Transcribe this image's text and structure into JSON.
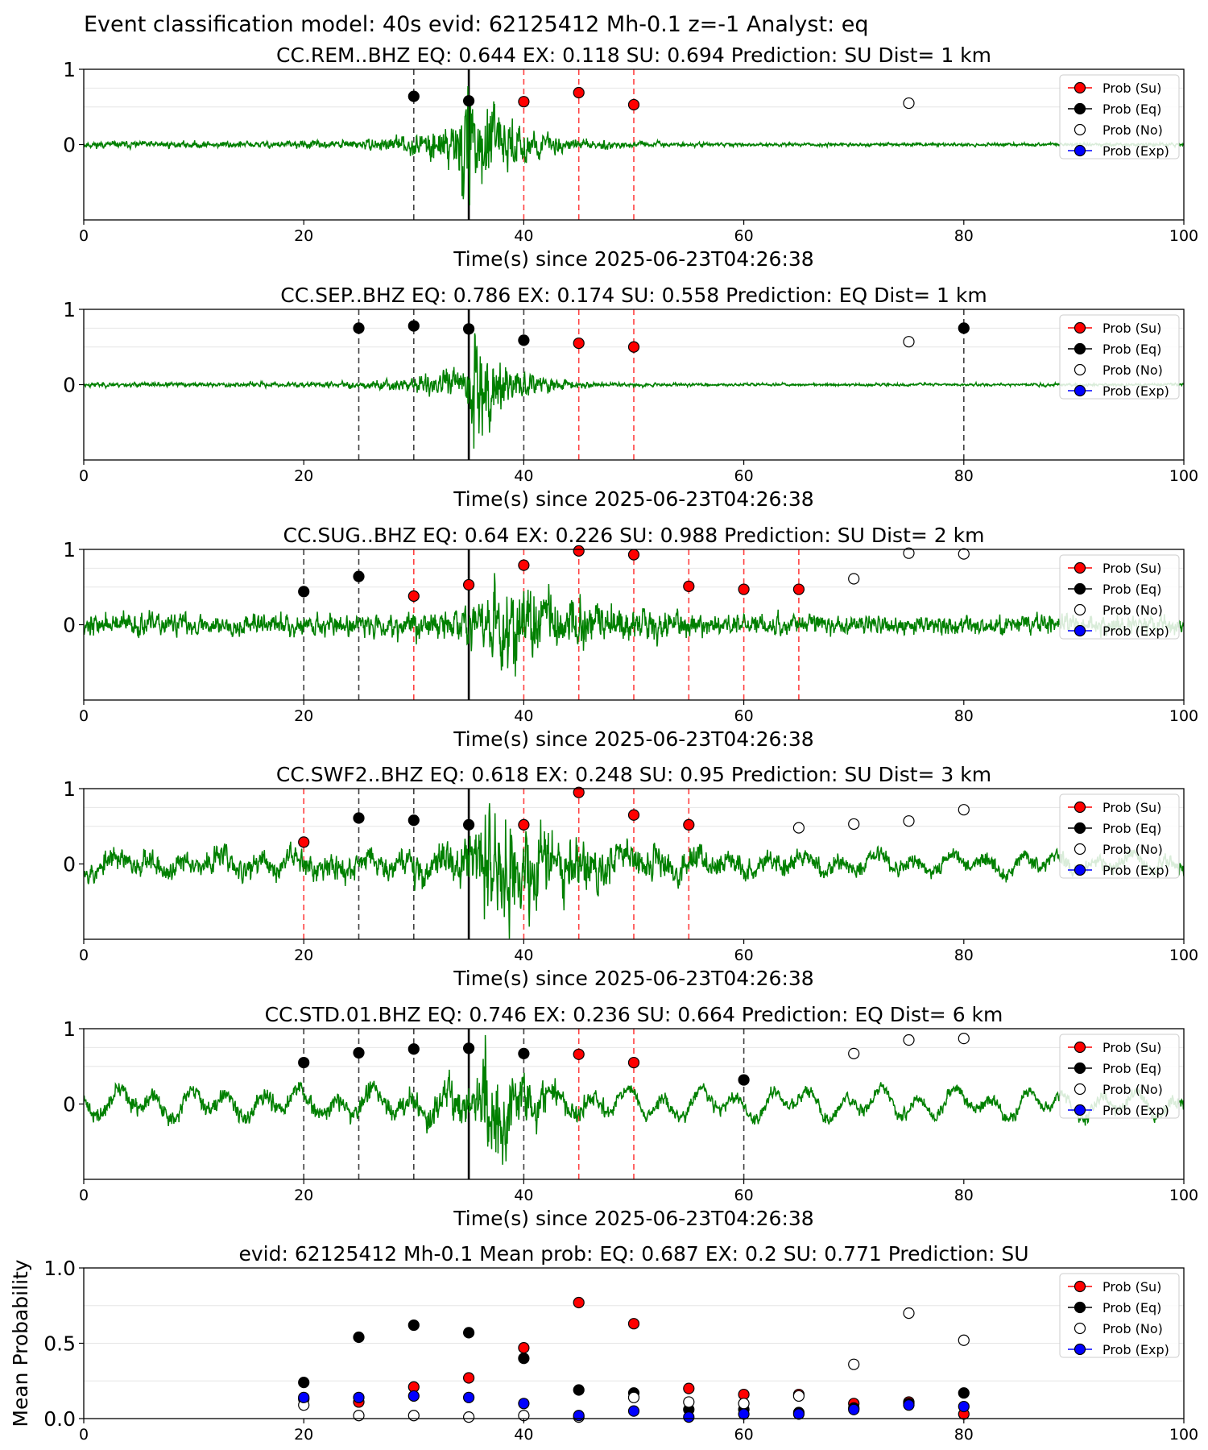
{
  "figure": {
    "suptitle": "Event classification model: 40s evid: 62125412 Mh-0.1 z=-1 Analyst: eq"
  },
  "legend_labels": [
    "Prob (Su)",
    "Prob (Eq)",
    "Prob (No)",
    "Prob (Exp)"
  ],
  "colors": {
    "su": "#ff0000",
    "eq": "#000000",
    "no": "#ffffff",
    "exp": "#0000ff",
    "waveform": "#008000",
    "su_line": "#ff4040",
    "eq_line": "#404040",
    "pick_line": "#000000"
  },
  "chart_data": [
    {
      "type": "scatter",
      "title": "CC.REM..BHZ   EQ: 0.644   EX: 0.118   SU: 0.694   Prediction: SU    Dist= 1 km",
      "xlabel": "Time(s) since 2025-06-23T04:26:38",
      "xlim": [
        0,
        100
      ],
      "xticks": [
        "0",
        "20",
        "40",
        "60",
        "80",
        "100"
      ],
      "ylim": [
        -1,
        1
      ],
      "yticks": [
        "0",
        "1"
      ],
      "legend_position": "upper right",
      "pick_time": 35,
      "waveform": {
        "pre_noise": 0.03,
        "event_start": 34,
        "event_amp": 1.15,
        "decay": 4.0,
        "post_noise": 0.015,
        "long_period": 0.0,
        "seed": 11
      },
      "series": [
        {
          "name": "Prob (Su)",
          "x": [
            40,
            45,
            50
          ],
          "y": [
            0.57,
            0.69,
            0.53
          ]
        },
        {
          "name": "Prob (Eq)",
          "x": [
            30,
            35
          ],
          "y": [
            0.64,
            0.58
          ]
        },
        {
          "name": "Prob (No)",
          "x": [
            75
          ],
          "y": [
            0.55
          ]
        },
        {
          "name": "Prob (Exp)",
          "x": [],
          "y": []
        }
      ]
    },
    {
      "type": "scatter",
      "title": "CC.SEP..BHZ   EQ: 0.786   EX: 0.174   SU: 0.558   Prediction: EQ    Dist= 1 km",
      "xlabel": "Time(s) since 2025-06-23T04:26:38",
      "xlim": [
        0,
        100
      ],
      "xticks": [
        "0",
        "20",
        "40",
        "60",
        "80",
        "100"
      ],
      "ylim": [
        -1,
        1
      ],
      "yticks": [
        "0",
        "1"
      ],
      "legend_position": "upper right",
      "pick_time": 35,
      "waveform": {
        "pre_noise": 0.02,
        "event_start": 35,
        "event_amp": 1.25,
        "decay": 3.0,
        "post_noise": 0.012,
        "long_period": 0.0,
        "seed": 23
      },
      "series": [
        {
          "name": "Prob (Su)",
          "x": [
            45,
            50
          ],
          "y": [
            0.55,
            0.5
          ]
        },
        {
          "name": "Prob (Eq)",
          "x": [
            25,
            30,
            35,
            40,
            80
          ],
          "y": [
            0.75,
            0.78,
            0.74,
            0.59,
            0.75
          ]
        },
        {
          "name": "Prob (No)",
          "x": [
            75
          ],
          "y": [
            0.57
          ]
        },
        {
          "name": "Prob (Exp)",
          "x": [],
          "y": []
        }
      ]
    },
    {
      "type": "scatter",
      "title": "CC.SUG..BHZ   EQ: 0.64   EX: 0.226   SU: 0.988   Prediction: SU    Dist= 2 km",
      "xlabel": "Time(s) since 2025-06-23T04:26:38",
      "xlim": [
        0,
        100
      ],
      "xticks": [
        "0",
        "20",
        "40",
        "60",
        "80",
        "100"
      ],
      "ylim": [
        -1,
        1
      ],
      "yticks": [
        "0",
        "1"
      ],
      "legend_position": "upper right",
      "pick_time": 35,
      "waveform": {
        "pre_noise": 0.1,
        "event_start": 37,
        "event_amp": 0.9,
        "decay": 7.0,
        "post_noise": 0.08,
        "long_period": 0.0,
        "seed": 37
      },
      "series": [
        {
          "name": "Prob (Su)",
          "x": [
            30,
            35,
            40,
            45,
            50,
            55,
            60,
            65
          ],
          "y": [
            0.38,
            0.53,
            0.79,
            0.98,
            0.93,
            0.51,
            0.47,
            0.47
          ]
        },
        {
          "name": "Prob (Eq)",
          "x": [
            20,
            25
          ],
          "y": [
            0.44,
            0.64
          ]
        },
        {
          "name": "Prob (No)",
          "x": [
            70,
            75,
            80
          ],
          "y": [
            0.61,
            0.95,
            0.94
          ]
        },
        {
          "name": "Prob (Exp)",
          "x": [],
          "y": []
        }
      ]
    },
    {
      "type": "scatter",
      "title": "CC.SWF2..BHZ   EQ: 0.618   EX: 0.248   SU: 0.95   Prediction: SU    Dist= 3 km",
      "xlabel": "Time(s) since 2025-06-23T04:26:38",
      "xlim": [
        0,
        100
      ],
      "xticks": [
        "0",
        "20",
        "40",
        "60",
        "80",
        "100"
      ],
      "ylim": [
        -1,
        1
      ],
      "yticks": [
        "0",
        "1"
      ],
      "legend_position": "upper right",
      "pick_time": 35,
      "waveform": {
        "pre_noise": 0.11,
        "event_start": 36,
        "event_amp": 1.0,
        "decay": 8.0,
        "post_noise": 0.07,
        "long_period": 0.14,
        "seed": 53
      },
      "series": [
        {
          "name": "Prob (Su)",
          "x": [
            20,
            40,
            45,
            50,
            55
          ],
          "y": [
            0.29,
            0.52,
            0.95,
            0.65,
            0.52
          ]
        },
        {
          "name": "Prob (Eq)",
          "x": [
            25,
            30,
            35
          ],
          "y": [
            0.61,
            0.58,
            0.52
          ]
        },
        {
          "name": "Prob (No)",
          "x": [
            65,
            70,
            75,
            80
          ],
          "y": [
            0.48,
            0.53,
            0.57,
            0.72
          ]
        },
        {
          "name": "Prob (Exp)",
          "x": [],
          "y": []
        }
      ]
    },
    {
      "type": "scatter",
      "title": "CC.STD.01.BHZ   EQ: 0.746   EX: 0.236   SU: 0.664   Prediction: EQ    Dist= 6 km",
      "xlabel": "Time(s) since 2025-06-23T04:26:38",
      "xlim": [
        0,
        100
      ],
      "xticks": [
        "0",
        "20",
        "40",
        "60",
        "80",
        "100"
      ],
      "ylim": [
        -1,
        1
      ],
      "yticks": [
        "0",
        "1"
      ],
      "legend_position": "upper right",
      "pick_time": 35,
      "waveform": {
        "pre_noise": 0.08,
        "event_start": 36,
        "event_amp": 1.05,
        "decay": 3.5,
        "post_noise": 0.06,
        "long_period": 0.22,
        "seed": 71
      },
      "series": [
        {
          "name": "Prob (Su)",
          "x": [
            45,
            50
          ],
          "y": [
            0.66,
            0.55
          ]
        },
        {
          "name": "Prob (Eq)",
          "x": [
            20,
            25,
            30,
            35,
            40,
            60
          ],
          "y": [
            0.55,
            0.68,
            0.73,
            0.74,
            0.67,
            0.32
          ]
        },
        {
          "name": "Prob (No)",
          "x": [
            70,
            75,
            80
          ],
          "y": [
            0.67,
            0.85,
            0.87
          ]
        },
        {
          "name": "Prob (Exp)",
          "x": [],
          "y": []
        }
      ]
    },
    {
      "type": "scatter",
      "title": "evid: 62125412  Mh-0.1   Mean prob:   EQ: 0.687  EX: 0.2  SU: 0.771   Prediction: SU",
      "xlabel": "",
      "ylabel": "Mean Probability",
      "xlim": [
        0,
        100
      ],
      "xticks": [
        "0",
        "20",
        "40",
        "60",
        "80",
        "100"
      ],
      "ylim": [
        0,
        1
      ],
      "yticks": [
        "0.0",
        "0.5",
        "1.0"
      ],
      "legend_position": "upper right",
      "series": [
        {
          "name": "Prob (Su)",
          "x": [
            20,
            25,
            30,
            35,
            40,
            45,
            50,
            55,
            60,
            65,
            70,
            75,
            80
          ],
          "y": [
            0.13,
            0.11,
            0.21,
            0.27,
            0.47,
            0.77,
            0.63,
            0.2,
            0.16,
            0.16,
            0.1,
            0.11,
            0.03
          ]
        },
        {
          "name": "Prob (Eq)",
          "x": [
            20,
            25,
            30,
            35,
            40,
            45,
            50,
            55,
            60,
            65,
            70,
            75,
            80
          ],
          "y": [
            0.24,
            0.54,
            0.62,
            0.57,
            0.4,
            0.19,
            0.17,
            0.06,
            0.06,
            0.04,
            0.07,
            0.1,
            0.17
          ]
        },
        {
          "name": "Prob (No)",
          "x": [
            20,
            25,
            30,
            35,
            40,
            45,
            50,
            55,
            60,
            65,
            70,
            75,
            80
          ],
          "y": [
            0.09,
            0.02,
            0.02,
            0.01,
            0.02,
            0.01,
            0.14,
            0.11,
            0.1,
            0.15,
            0.36,
            0.7,
            0.52
          ]
        },
        {
          "name": "Prob (Exp)",
          "x": [
            20,
            25,
            30,
            35,
            40,
            45,
            50,
            55,
            60,
            65,
            70,
            75,
            80
          ],
          "y": [
            0.14,
            0.14,
            0.15,
            0.14,
            0.1,
            0.02,
            0.05,
            0.01,
            0.03,
            0.03,
            0.06,
            0.09,
            0.08
          ]
        }
      ]
    }
  ]
}
